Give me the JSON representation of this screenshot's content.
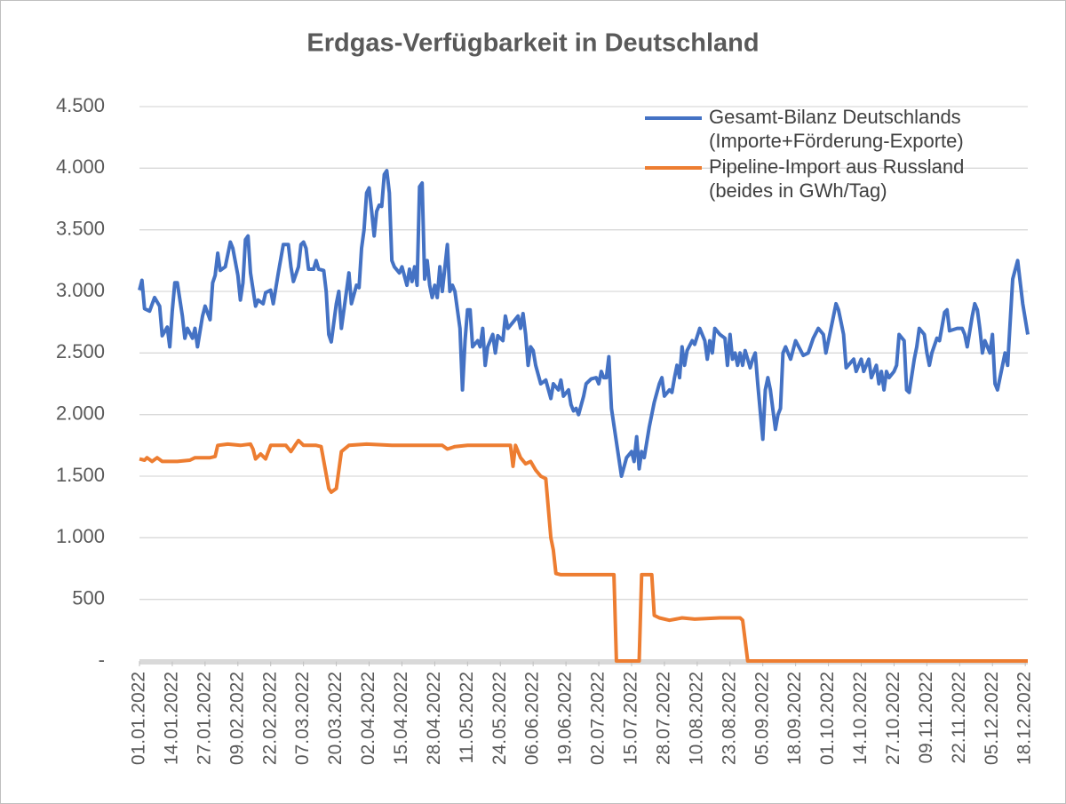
{
  "chart_data": {
    "type": "line",
    "title": "Erdgas-Verfügbarkeit in Deutschland",
    "xlim": [
      0,
      352
    ],
    "xticks": [
      {
        "value": 0,
        "label": "01.01.2022"
      },
      {
        "value": 13,
        "label": "14.01.2022"
      },
      {
        "value": 26,
        "label": "27.01.2022"
      },
      {
        "value": 39,
        "label": "09.02.2022"
      },
      {
        "value": 52,
        "label": "22.02.2022"
      },
      {
        "value": 65,
        "label": "07.03.2022"
      },
      {
        "value": 78,
        "label": "20.03.2022"
      },
      {
        "value": 91,
        "label": "02.04.2022"
      },
      {
        "value": 104,
        "label": "15.04.2022"
      },
      {
        "value": 117,
        "label": "28.04.2022"
      },
      {
        "value": 130,
        "label": "11.05.2022"
      },
      {
        "value": 143,
        "label": "24.05.2022"
      },
      {
        "value": 156,
        "label": "06.06.2022"
      },
      {
        "value": 169,
        "label": "19.06.2022"
      },
      {
        "value": 182,
        "label": "02.07.2022"
      },
      {
        "value": 195,
        "label": "15.07.2022"
      },
      {
        "value": 208,
        "label": "28.07.2022"
      },
      {
        "value": 221,
        "label": "10.08.2022"
      },
      {
        "value": 234,
        "label": "23.08.2022"
      },
      {
        "value": 247,
        "label": "05.09.2022"
      },
      {
        "value": 260,
        "label": "18.09.2022"
      },
      {
        "value": 273,
        "label": "01.10.2022"
      },
      {
        "value": 286,
        "label": "14.10.2022"
      },
      {
        "value": 299,
        "label": "27.10.2022"
      },
      {
        "value": 312,
        "label": "09.11.2022"
      },
      {
        "value": 325,
        "label": "22.11.2022"
      },
      {
        "value": 338,
        "label": "05.12.2022"
      },
      {
        "value": 351,
        "label": "18.12.2022"
      }
    ],
    "ylim": [
      0,
      4500
    ],
    "yticks": [
      {
        "value": 0,
        "label": "-"
      },
      500,
      {
        "value": 1000,
        "label": "1.000"
      },
      {
        "value": 1500,
        "label": "1.500"
      },
      {
        "value": 2000,
        "label": "2.000"
      },
      {
        "value": 2500,
        "label": "2.500"
      },
      {
        "value": 3000,
        "label": "3.000"
      },
      {
        "value": 3500,
        "label": "3.500"
      },
      {
        "value": 4000,
        "label": "4.000"
      },
      {
        "value": 4500,
        "label": "4.500"
      }
    ],
    "grid": true,
    "legend": "top-right",
    "series": [
      {
        "name": "Gesamt-Bilanz Deutschlands\n(Importe+Förderung-Exporte)",
        "color": "#4472c4",
        "x": [
          0,
          1,
          2,
          4,
          6,
          8,
          9,
          11,
          12,
          13,
          14,
          15,
          17,
          18,
          19,
          21,
          22,
          23,
          25,
          26,
          28,
          29,
          30,
          31,
          32,
          34,
          36,
          37,
          39,
          40,
          41,
          42,
          43,
          44,
          46,
          47,
          49,
          50,
          52,
          53,
          55,
          57,
          59,
          60,
          61,
          63,
          64,
          65,
          66,
          67,
          69,
          70,
          71,
          73,
          74,
          75,
          76,
          78,
          79,
          80,
          82,
          83,
          84,
          86,
          87,
          88,
          89,
          90,
          91,
          92,
          93,
          94,
          95,
          96,
          97,
          98,
          99,
          100,
          101,
          103,
          104,
          106,
          107,
          108,
          109,
          110,
          111,
          112,
          113,
          114,
          115,
          116,
          117,
          118,
          119,
          120,
          122,
          123,
          124,
          125,
          127,
          128,
          129,
          130,
          131,
          132,
          134,
          135,
          136,
          137,
          138,
          140,
          141,
          142,
          144,
          145,
          146,
          148,
          150,
          151,
          152,
          153,
          154,
          155,
          156,
          157,
          159,
          161,
          163,
          164,
          166,
          167,
          168,
          170,
          171,
          172,
          173,
          174,
          176,
          177,
          179,
          181,
          182,
          183,
          184,
          185,
          186,
          187,
          191,
          193,
          195,
          196,
          197,
          198,
          199,
          200,
          202,
          204,
          206,
          207,
          208,
          210,
          211,
          212,
          213,
          214,
          215,
          216,
          217,
          219,
          220,
          222,
          224,
          225,
          226,
          227,
          228,
          230,
          232,
          233,
          234,
          235,
          236,
          237,
          238,
          239,
          240,
          242,
          243,
          244,
          245,
          247,
          248,
          249,
          250,
          252,
          253,
          254,
          255,
          256,
          257,
          258,
          260,
          263,
          265,
          267,
          269,
          271,
          272,
          273,
          275,
          276,
          277,
          278,
          279,
          280,
          283,
          284,
          286,
          287,
          289,
          290,
          292,
          293,
          294,
          295,
          296,
          297,
          299,
          300,
          301,
          303,
          304,
          305,
          307,
          308,
          309,
          311,
          312,
          313,
          314,
          316,
          317,
          319,
          320,
          321,
          324,
          326,
          327,
          328,
          330,
          331,
          332,
          333,
          334,
          335,
          337,
          338,
          339,
          340,
          343,
          344,
          346,
          348,
          350,
          352
        ],
        "values": [
          3010,
          3090,
          2860,
          2840,
          2950,
          2880,
          2640,
          2710,
          2550,
          2840,
          3070,
          3070,
          2800,
          2620,
          2700,
          2620,
          2700,
          2550,
          2800,
          2880,
          2770,
          3070,
          3130,
          3310,
          3170,
          3200,
          3400,
          3350,
          3130,
          2930,
          3070,
          3420,
          3450,
          3150,
          2880,
          2930,
          2900,
          2990,
          3010,
          2900,
          3150,
          3380,
          3380,
          3200,
          3080,
          3200,
          3380,
          3400,
          3350,
          3180,
          3180,
          3250,
          3180,
          3170,
          3000,
          2650,
          2590,
          2900,
          3000,
          2700,
          3000,
          3150,
          2900,
          3050,
          3030,
          3350,
          3500,
          3800,
          3840,
          3650,
          3450,
          3650,
          3700,
          3690,
          3950,
          3980,
          3800,
          3250,
          3200,
          3150,
          3200,
          3050,
          3180,
          3080,
          3200,
          3050,
          3850,
          3880,
          3100,
          3250,
          3050,
          2950,
          3050,
          2950,
          3200,
          3000,
          3380,
          3000,
          3050,
          3000,
          2700,
          2200,
          2600,
          2850,
          2850,
          2550,
          2600,
          2550,
          2700,
          2400,
          2550,
          2650,
          2500,
          2640,
          2600,
          2800,
          2700,
          2750,
          2800,
          2700,
          2820,
          2650,
          2400,
          2550,
          2520,
          2400,
          2250,
          2280,
          2130,
          2250,
          2200,
          2280,
          2150,
          2200,
          2080,
          2030,
          2050,
          2000,
          2150,
          2250,
          2290,
          2300,
          2250,
          2350,
          2300,
          2300,
          2470,
          2050,
          1500,
          1650,
          1700,
          1620,
          1820,
          1560,
          1700,
          1650,
          1900,
          2100,
          2250,
          2300,
          2150,
          2200,
          2180,
          2300,
          2400,
          2300,
          2550,
          2400,
          2520,
          2600,
          2570,
          2700,
          2600,
          2450,
          2600,
          2500,
          2700,
          2650,
          2620,
          2400,
          2650,
          2450,
          2500,
          2400,
          2500,
          2400,
          2520,
          2380,
          2450,
          2500,
          2250,
          1800,
          2200,
          2300,
          2200,
          1880,
          2000,
          2050,
          2500,
          2550,
          2500,
          2450,
          2600,
          2480,
          2500,
          2620,
          2700,
          2650,
          2500,
          2600,
          2800,
          2900,
          2850,
          2750,
          2650,
          2380,
          2450,
          2350,
          2450,
          2350,
          2450,
          2300,
          2400,
          2250,
          2350,
          2200,
          2350,
          2300,
          2350,
          2400,
          2650,
          2600,
          2200,
          2180,
          2450,
          2550,
          2700,
          2650,
          2500,
          2400,
          2500,
          2620,
          2600,
          2830,
          2850,
          2680,
          2700,
          2700,
          2650,
          2550,
          2800,
          2900,
          2850,
          2700,
          2500,
          2600,
          2500,
          2650,
          2250,
          2200,
          2500,
          2400,
          3100,
          3250,
          2900,
          2650
        ]
      },
      {
        "name": "Pipeline-Import aus Russland\n(beides in GWh/Tag)",
        "color": "#ed7d31",
        "x": [
          0,
          2,
          3,
          5,
          7,
          9,
          15,
          20,
          22,
          28,
          30,
          31,
          35,
          40,
          44,
          45,
          46,
          48,
          50,
          52,
          58,
          60,
          62,
          63,
          65,
          70,
          72,
          75,
          76,
          78,
          80,
          83,
          90,
          100,
          110,
          120,
          122,
          125,
          130,
          140,
          147,
          148,
          149,
          151,
          153,
          155,
          157,
          159,
          161,
          163,
          164,
          165,
          167,
          175,
          185,
          188,
          189,
          198,
          199,
          203,
          204,
          206,
          210,
          215,
          220,
          230,
          238,
          239,
          241,
          260,
          300,
          352
        ],
        "values": [
          1640,
          1630,
          1650,
          1620,
          1650,
          1620,
          1620,
          1630,
          1650,
          1650,
          1660,
          1750,
          1760,
          1750,
          1760,
          1720,
          1640,
          1680,
          1640,
          1750,
          1750,
          1700,
          1760,
          1790,
          1750,
          1750,
          1740,
          1400,
          1370,
          1400,
          1700,
          1750,
          1760,
          1750,
          1750,
          1750,
          1720,
          1740,
          1750,
          1750,
          1750,
          1580,
          1750,
          1650,
          1600,
          1620,
          1550,
          1500,
          1480,
          1000,
          900,
          710,
          700,
          700,
          700,
          700,
          0,
          0,
          700,
          700,
          370,
          350,
          330,
          350,
          340,
          350,
          350,
          330,
          0,
          0,
          0,
          0
        ]
      }
    ]
  }
}
